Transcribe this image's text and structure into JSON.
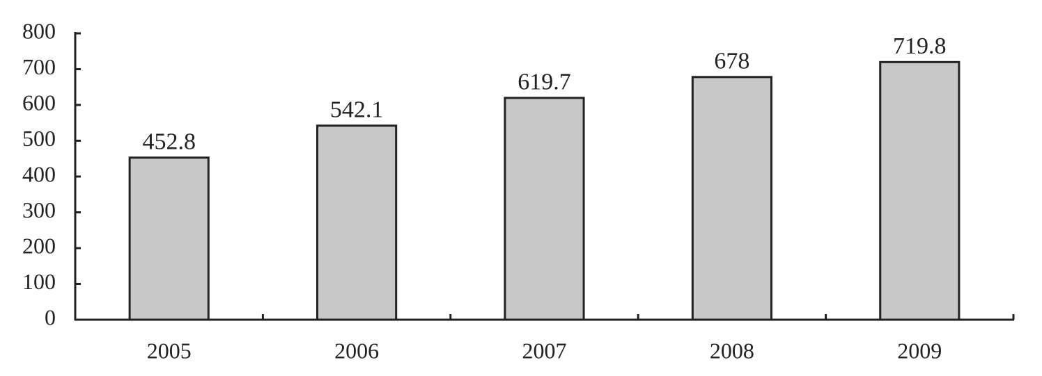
{
  "chart_data": {
    "type": "bar",
    "categories": [
      "2005",
      "2006",
      "2007",
      "2008",
      "2009"
    ],
    "values": [
      452.8,
      542.1,
      619.7,
      678,
      719.8
    ],
    "color": "#c8c8c8",
    "ylim": [
      0,
      800
    ],
    "yticks": [
      0,
      100,
      200,
      300,
      400,
      500,
      600,
      700,
      800
    ],
    "grid": false
  }
}
